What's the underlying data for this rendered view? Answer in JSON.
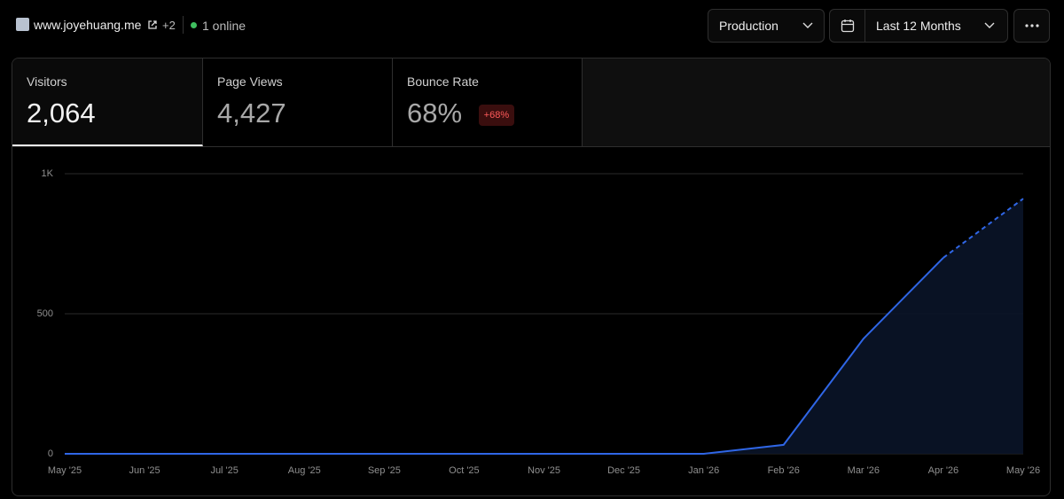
{
  "header": {
    "site": "www.joyehuang.me",
    "extra": "+2",
    "online": "1 online",
    "environment": "Production",
    "range": "Last 12 Months"
  },
  "metrics": [
    {
      "label": "Visitors",
      "value": "2,064"
    },
    {
      "label": "Page Views",
      "value": "4,427"
    },
    {
      "label": "Bounce Rate",
      "value": "68%",
      "badge": "+68%"
    }
  ],
  "chart_data": {
    "type": "line",
    "categories": [
      "May '25",
      "Jun '25",
      "Jul '25",
      "Aug '25",
      "Sep '25",
      "Oct '25",
      "Nov '25",
      "Dec '25",
      "Jan '26",
      "Feb '26",
      "Mar '26",
      "Apr '26",
      "May '26"
    ],
    "values": [
      0,
      0,
      0,
      0,
      0,
      0,
      0,
      0,
      0,
      32,
      411,
      700,
      911
    ],
    "color": "#2f66e6",
    "area": true,
    "dashed_last_segment": true,
    "ylim": [
      0,
      1000
    ],
    "yticks": [
      0,
      500,
      {
        "value": 1000,
        "label": "1K"
      }
    ],
    "grid": true
  }
}
